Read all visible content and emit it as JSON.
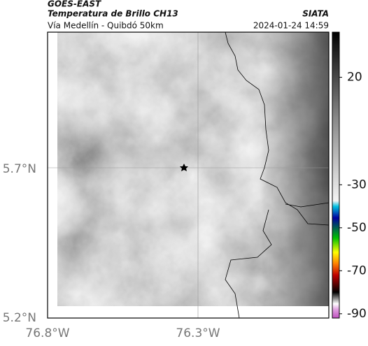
{
  "header": {
    "title": "GOES-EAST",
    "subtitle": "Temperatura de Brillo CH13",
    "route": "Vía Medellín - Quibdó 50km",
    "source": "SIATA",
    "timestamp": "2024-01-24 14:59"
  },
  "map": {
    "lat_labels": [
      "5.7°N",
      "5.2°N"
    ],
    "lon_labels": [
      "76.8°W",
      "76.3°W"
    ]
  },
  "colorbar": {
    "range": [
      -92,
      41
    ],
    "ticks": [
      20,
      -30,
      -50,
      -70,
      -90
    ]
  }
}
